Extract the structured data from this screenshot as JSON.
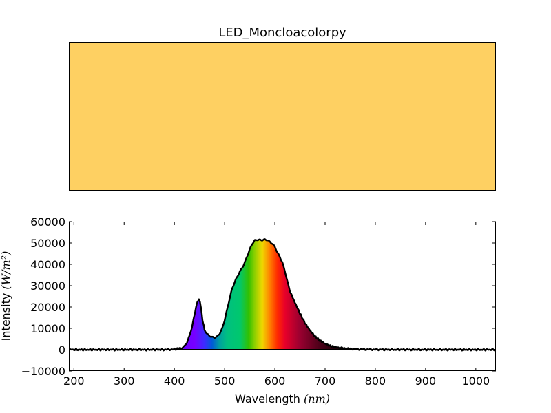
{
  "chart_data": [
    {
      "type": "swatch",
      "title": "LED_Moncloacolorpy",
      "color": "#FED062"
    },
    {
      "type": "line",
      "title": "",
      "xlabel_text": "Wavelength ",
      "xlabel_unit": "(nm)",
      "ylabel_text": "Intensity ",
      "ylabel_unit": "(W/m²)",
      "xlim": [
        190,
        1040
      ],
      "ylim": [
        -10000,
        60000
      ],
      "x_ticks": [
        200,
        300,
        400,
        500,
        600,
        700,
        800,
        900,
        1000
      ],
      "y_ticks": [
        -10000,
        0,
        10000,
        20000,
        30000,
        40000,
        50000,
        60000
      ],
      "x_tick_labels": [
        "200",
        "300",
        "400",
        "500",
        "600",
        "700",
        "800",
        "900",
        "1000"
      ],
      "y_tick_labels": [
        "−10000",
        "0",
        "10000",
        "20000",
        "30000",
        "40000",
        "50000",
        "60000"
      ],
      "grid": false,
      "fill": "spectral-colors-under-curve",
      "series": [
        {
          "x": [
            190,
            380,
            400,
            410,
            415,
            420,
            425,
            430,
            435,
            440,
            443,
            446,
            449,
            451,
            453,
            456,
            460,
            465,
            470,
            475,
            480,
            485,
            490,
            495,
            500,
            505,
            510,
            515,
            520,
            525,
            530,
            535,
            540,
            545,
            550,
            555,
            560,
            565,
            570,
            575,
            580,
            585,
            590,
            595,
            600,
            605,
            610,
            615,
            620,
            625,
            630,
            640,
            650,
            660,
            670,
            680,
            690,
            700,
            710,
            720,
            740,
            760,
            780,
            800,
            850,
            900,
            950,
            1040
          ],
          "y": [
            0,
            0,
            200,
            500,
            900,
            1800,
            3500,
            6500,
            10500,
            16000,
            20000,
            22500,
            23500,
            22500,
            19500,
            14000,
            9500,
            7500,
            6500,
            5800,
            5500,
            6000,
            7500,
            10000,
            14000,
            19000,
            24000,
            28500,
            31500,
            34000,
            36500,
            38500,
            41000,
            44000,
            47000,
            49500,
            51000,
            51400,
            51500,
            51500,
            51800,
            51500,
            50500,
            49500,
            48000,
            45500,
            43500,
            41000,
            37000,
            32000,
            27500,
            22000,
            17000,
            12500,
            9000,
            6200,
            4200,
            2800,
            1800,
            1200,
            600,
            300,
            150,
            80,
            30,
            10,
            0,
            0
          ]
        }
      ]
    }
  ]
}
